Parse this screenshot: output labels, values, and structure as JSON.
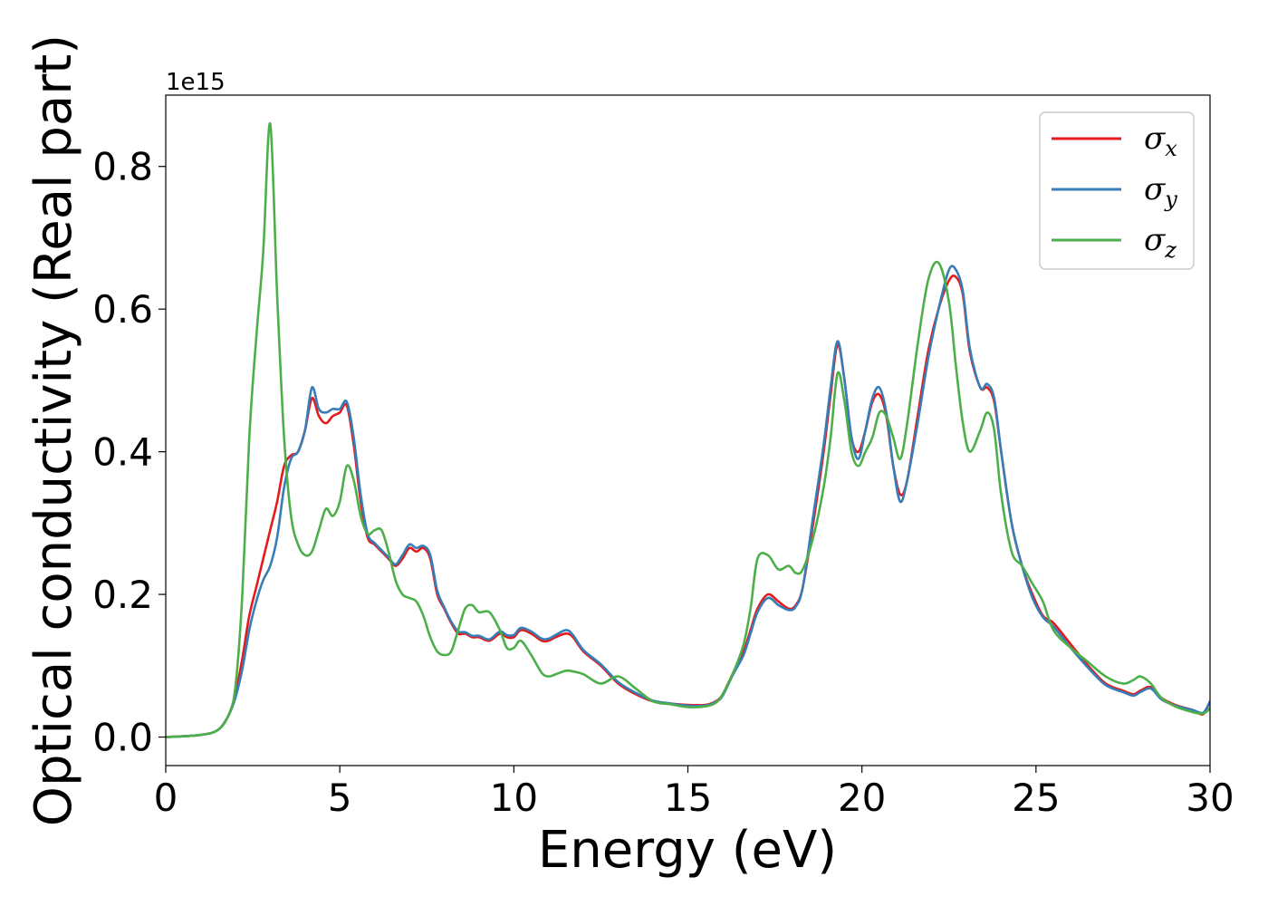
{
  "chart_data": {
    "type": "line",
    "xlabel": "Energy (eV)",
    "ylabel": "Optical conductivity (Real part)",
    "y_offset_label": "1e15",
    "xlim": [
      0,
      30
    ],
    "ylim": [
      -0.04,
      0.9
    ],
    "xticks": [
      0,
      5,
      10,
      15,
      20,
      25,
      30
    ],
    "xtick_labels": [
      "0",
      "5",
      "10",
      "15",
      "20",
      "25",
      "30"
    ],
    "yticks": [
      0.0,
      0.2,
      0.4,
      0.6,
      0.8
    ],
    "ytick_labels": [
      "0.0",
      "0.2",
      "0.4",
      "0.6",
      "0.8"
    ],
    "grid": false,
    "legend_position": "top-right",
    "series": [
      {
        "name": "σ",
        "subscript": "x",
        "color": "#e41a1c",
        "x": [
          0,
          1,
          1.5,
          1.8,
          2.0,
          2.2,
          2.4,
          2.6,
          2.8,
          3.0,
          3.2,
          3.4,
          3.6,
          3.8,
          4.0,
          4.2,
          4.4,
          4.6,
          4.8,
          5.0,
          5.2,
          5.4,
          5.6,
          5.8,
          6.0,
          6.2,
          6.4,
          6.6,
          6.8,
          7.0,
          7.2,
          7.4,
          7.6,
          7.8,
          8.0,
          8.2,
          8.4,
          8.6,
          8.8,
          9.0,
          9.3,
          9.6,
          9.8,
          10.0,
          10.2,
          10.5,
          10.8,
          11.0,
          11.2,
          11.5,
          11.7,
          12.0,
          12.5,
          13.0,
          13.5,
          14.0,
          14.5,
          15.0,
          15.5,
          15.8,
          16.0,
          16.3,
          16.6,
          16.8,
          17.0,
          17.3,
          17.6,
          17.9,
          18.1,
          18.3,
          18.6,
          18.9,
          19.1,
          19.3,
          19.5,
          19.7,
          19.9,
          20.1,
          20.3,
          20.5,
          20.7,
          20.9,
          21.1,
          21.3,
          21.6,
          21.9,
          22.2,
          22.5,
          22.7,
          22.9,
          23.1,
          23.4,
          23.6,
          23.8,
          24.0,
          24.3,
          24.6,
          24.9,
          25.2,
          25.5,
          26.0,
          26.5,
          27.0,
          27.5,
          27.8,
          28.0,
          28.3,
          28.6,
          29.0,
          29.5,
          29.8,
          30.0
        ],
        "y": [
          0,
          0.003,
          0.01,
          0.03,
          0.06,
          0.11,
          0.17,
          0.21,
          0.25,
          0.29,
          0.33,
          0.38,
          0.395,
          0.4,
          0.43,
          0.475,
          0.45,
          0.44,
          0.45,
          0.455,
          0.465,
          0.41,
          0.33,
          0.28,
          0.27,
          0.26,
          0.25,
          0.24,
          0.25,
          0.265,
          0.26,
          0.265,
          0.25,
          0.2,
          0.18,
          0.16,
          0.145,
          0.145,
          0.14,
          0.14,
          0.135,
          0.145,
          0.14,
          0.14,
          0.15,
          0.145,
          0.135,
          0.135,
          0.14,
          0.145,
          0.14,
          0.12,
          0.1,
          0.075,
          0.06,
          0.05,
          0.047,
          0.045,
          0.045,
          0.05,
          0.06,
          0.09,
          0.12,
          0.15,
          0.18,
          0.2,
          0.19,
          0.18,
          0.185,
          0.21,
          0.3,
          0.4,
          0.48,
          0.55,
          0.5,
          0.42,
          0.4,
          0.43,
          0.47,
          0.48,
          0.45,
          0.38,
          0.34,
          0.36,
          0.45,
          0.54,
          0.6,
          0.64,
          0.645,
          0.62,
          0.54,
          0.49,
          0.49,
          0.47,
          0.4,
          0.3,
          0.24,
          0.2,
          0.17,
          0.16,
          0.13,
          0.1,
          0.075,
          0.065,
          0.06,
          0.065,
          0.07,
          0.055,
          0.045,
          0.038,
          0.032,
          0.05
        ]
      },
      {
        "name": "σ",
        "subscript": "y",
        "color": "#377eb8",
        "x": [
          0,
          1,
          1.5,
          1.8,
          2.0,
          2.2,
          2.4,
          2.6,
          2.8,
          3.0,
          3.2,
          3.4,
          3.6,
          3.8,
          4.0,
          4.2,
          4.4,
          4.6,
          4.8,
          5.0,
          5.2,
          5.4,
          5.6,
          5.8,
          6.0,
          6.2,
          6.4,
          6.6,
          6.8,
          7.0,
          7.2,
          7.4,
          7.6,
          7.8,
          8.0,
          8.2,
          8.4,
          8.6,
          8.8,
          9.0,
          9.3,
          9.6,
          9.8,
          10.0,
          10.2,
          10.5,
          10.8,
          11.0,
          11.2,
          11.5,
          11.7,
          12.0,
          12.5,
          13.0,
          13.5,
          14.0,
          14.5,
          15.0,
          15.5,
          15.8,
          16.0,
          16.3,
          16.6,
          16.8,
          17.0,
          17.3,
          17.6,
          17.9,
          18.1,
          18.3,
          18.6,
          18.9,
          19.1,
          19.3,
          19.5,
          19.7,
          19.9,
          20.1,
          20.3,
          20.5,
          20.7,
          20.9,
          21.1,
          21.3,
          21.6,
          21.9,
          22.2,
          22.5,
          22.7,
          22.9,
          23.1,
          23.4,
          23.6,
          23.8,
          24.0,
          24.3,
          24.6,
          24.9,
          25.2,
          25.5,
          26.0,
          26.5,
          27.0,
          27.5,
          27.8,
          28.0,
          28.3,
          28.6,
          29.0,
          29.5,
          29.8,
          30.0
        ],
        "y": [
          0,
          0.003,
          0.01,
          0.03,
          0.055,
          0.095,
          0.15,
          0.19,
          0.22,
          0.24,
          0.28,
          0.35,
          0.39,
          0.4,
          0.43,
          0.49,
          0.46,
          0.455,
          0.46,
          0.46,
          0.47,
          0.42,
          0.34,
          0.285,
          0.272,
          0.262,
          0.252,
          0.242,
          0.255,
          0.27,
          0.265,
          0.268,
          0.255,
          0.205,
          0.182,
          0.162,
          0.148,
          0.147,
          0.142,
          0.142,
          0.137,
          0.148,
          0.143,
          0.143,
          0.153,
          0.148,
          0.138,
          0.138,
          0.143,
          0.15,
          0.143,
          0.122,
          0.102,
          0.077,
          0.062,
          0.051,
          0.047,
          0.044,
          0.044,
          0.049,
          0.058,
          0.088,
          0.115,
          0.145,
          0.175,
          0.195,
          0.185,
          0.178,
          0.183,
          0.21,
          0.31,
          0.41,
          0.49,
          0.555,
          0.5,
          0.42,
          0.39,
          0.43,
          0.475,
          0.49,
          0.455,
          0.38,
          0.33,
          0.36,
          0.44,
          0.53,
          0.6,
          0.655,
          0.655,
          0.625,
          0.545,
          0.49,
          0.495,
          0.475,
          0.4,
          0.3,
          0.24,
          0.195,
          0.168,
          0.155,
          0.125,
          0.097,
          0.073,
          0.063,
          0.058,
          0.063,
          0.068,
          0.053,
          0.044,
          0.038,
          0.034,
          0.05
        ]
      },
      {
        "name": "σ",
        "subscript": "z",
        "color": "#4daf4a",
        "x": [
          0,
          1,
          1.5,
          1.8,
          2.0,
          2.2,
          2.4,
          2.6,
          2.8,
          3.0,
          3.2,
          3.4,
          3.6,
          3.8,
          4.0,
          4.2,
          4.4,
          4.6,
          4.8,
          5.0,
          5.2,
          5.4,
          5.6,
          5.8,
          6.0,
          6.2,
          6.4,
          6.6,
          6.8,
          7.0,
          7.2,
          7.4,
          7.6,
          7.8,
          8.0,
          8.2,
          8.4,
          8.6,
          8.8,
          9.0,
          9.3,
          9.6,
          9.8,
          10.0,
          10.2,
          10.5,
          10.8,
          11.0,
          11.2,
          11.5,
          11.7,
          12.0,
          12.5,
          13.0,
          13.5,
          14.0,
          14.5,
          15.0,
          15.5,
          15.8,
          16.0,
          16.3,
          16.6,
          16.8,
          17.0,
          17.3,
          17.6,
          17.9,
          18.1,
          18.3,
          18.6,
          18.9,
          19.1,
          19.3,
          19.5,
          19.7,
          19.9,
          20.1,
          20.3,
          20.5,
          20.7,
          20.9,
          21.1,
          21.3,
          21.6,
          21.9,
          22.2,
          22.5,
          22.7,
          22.9,
          23.1,
          23.4,
          23.6,
          23.8,
          24.0,
          24.3,
          24.6,
          24.9,
          25.2,
          25.5,
          26.0,
          26.5,
          27.0,
          27.5,
          27.8,
          28.0,
          28.3,
          28.6,
          29.0,
          29.5,
          29.8,
          30.0
        ],
        "y": [
          0,
          0.003,
          0.01,
          0.03,
          0.07,
          0.2,
          0.42,
          0.56,
          0.68,
          0.86,
          0.62,
          0.42,
          0.31,
          0.27,
          0.255,
          0.26,
          0.29,
          0.32,
          0.31,
          0.33,
          0.38,
          0.36,
          0.31,
          0.285,
          0.29,
          0.29,
          0.26,
          0.22,
          0.2,
          0.195,
          0.19,
          0.17,
          0.14,
          0.12,
          0.115,
          0.12,
          0.15,
          0.18,
          0.185,
          0.175,
          0.175,
          0.15,
          0.125,
          0.125,
          0.135,
          0.115,
          0.09,
          0.085,
          0.088,
          0.093,
          0.092,
          0.088,
          0.075,
          0.085,
          0.068,
          0.05,
          0.046,
          0.042,
          0.043,
          0.048,
          0.06,
          0.09,
          0.13,
          0.18,
          0.25,
          0.255,
          0.235,
          0.24,
          0.23,
          0.235,
          0.28,
          0.35,
          0.42,
          0.51,
          0.47,
          0.4,
          0.38,
          0.4,
          0.42,
          0.455,
          0.45,
          0.42,
          0.39,
          0.44,
          0.55,
          0.64,
          0.665,
          0.61,
          0.52,
          0.44,
          0.4,
          0.43,
          0.455,
          0.43,
          0.34,
          0.26,
          0.24,
          0.215,
          0.19,
          0.15,
          0.125,
          0.105,
          0.085,
          0.075,
          0.08,
          0.085,
          0.075,
          0.055,
          0.043,
          0.035,
          0.033,
          0.04
        ]
      }
    ]
  }
}
